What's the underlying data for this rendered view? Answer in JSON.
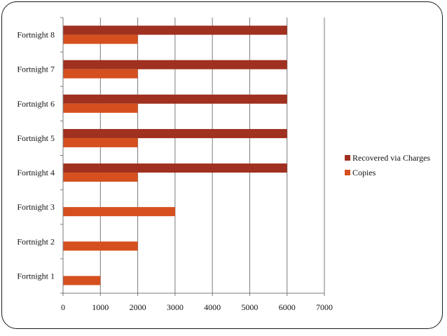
{
  "chart_data": {
    "type": "bar",
    "orientation": "horizontal",
    "categories": [
      "Fortnight 1",
      "Fortnight 2",
      "Fortnight 3",
      "Fortnight 4",
      "Fortnight 5",
      "Fortnight 6",
      "Fortnight 7",
      "Fortnight 8"
    ],
    "series": [
      {
        "name": "Recovered via Charges",
        "color": "#a0301f",
        "values": [
          0,
          0,
          0,
          6000,
          6000,
          6000,
          6000,
          6000
        ]
      },
      {
        "name": "Copies",
        "color": "#d5501e",
        "values": [
          1000,
          2000,
          3000,
          2000,
          2000,
          2000,
          2000,
          2000
        ]
      }
    ],
    "xlim": [
      0,
      7000
    ],
    "xticks": [
      0,
      1000,
      2000,
      3000,
      4000,
      5000,
      6000,
      7000
    ],
    "grid": "vertical",
    "legend_position": "right"
  }
}
